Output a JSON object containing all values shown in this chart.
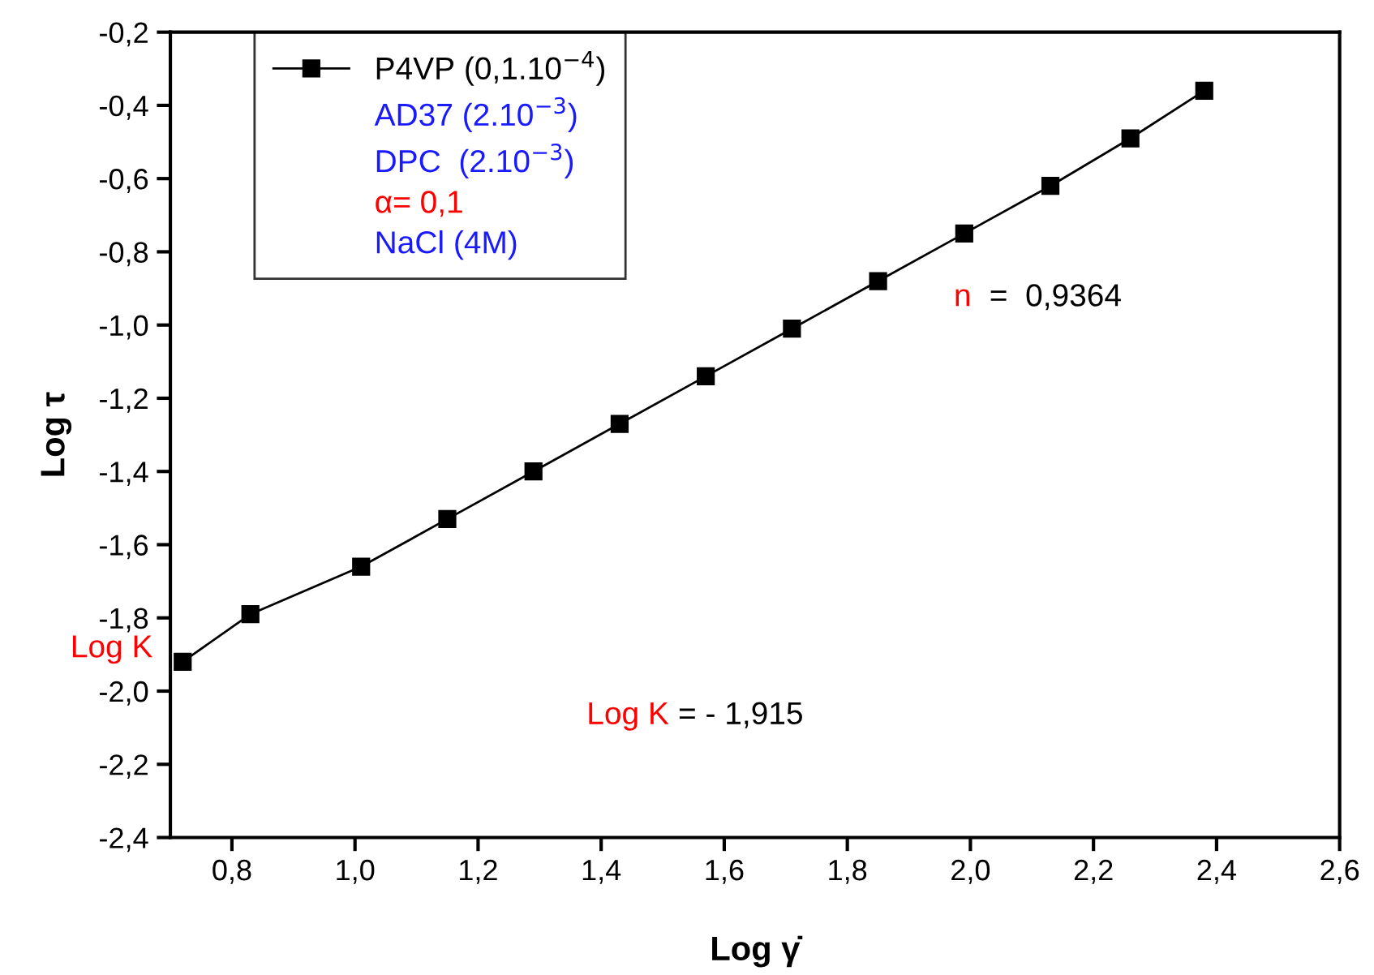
{
  "chart_data": {
    "type": "line",
    "xlabel": "Log γ̇",
    "ylabel": "Log τ",
    "x": [
      0.72,
      0.83,
      1.01,
      1.15,
      1.29,
      1.43,
      1.57,
      1.71,
      1.85,
      1.99,
      2.13,
      2.26,
      2.38
    ],
    "series": [
      {
        "name": "P4VP (0,1.10$^{−4}$)",
        "color": "#000000",
        "values": [
          -1.92,
          -1.79,
          -1.66,
          -1.53,
          -1.4,
          -1.27,
          -1.14,
          -1.01,
          -0.88,
          -0.75,
          -0.62,
          -0.49,
          -0.36
        ]
      }
    ],
    "xlim": [
      0.7,
      2.6
    ],
    "xticks": [
      {
        "value": 0.8,
        "label": "0,8"
      },
      {
        "value": 1.0,
        "label": "1,0"
      },
      {
        "value": 1.2,
        "label": "1,2"
      },
      {
        "value": 1.4,
        "label": "1,4"
      },
      {
        "value": 1.6,
        "label": "1,6"
      },
      {
        "value": 1.8,
        "label": "1,8"
      },
      {
        "value": 2.0,
        "label": "2,0"
      },
      {
        "value": 2.2,
        "label": "2,2"
      },
      {
        "value": 2.4,
        "label": "2,4"
      },
      {
        "value": 2.6,
        "label": "2,6"
      }
    ],
    "ylim": [
      -2.4,
      -0.2
    ],
    "yticks": [
      {
        "value": -2.4,
        "label": "-2,4"
      },
      {
        "value": -2.2,
        "label": "-2,2"
      },
      {
        "value": -2.0,
        "label": "-2,0"
      },
      {
        "value": -1.8,
        "label": "-1,8"
      },
      {
        "value": -1.6,
        "label": "-1,6"
      },
      {
        "value": -1.4,
        "label": "-1,4"
      },
      {
        "value": -1.2,
        "label": "-1,2"
      },
      {
        "value": -1.0,
        "label": "-1,0"
      },
      {
        "value": -0.8,
        "label": "-0,8"
      },
      {
        "value": -0.6,
        "label": "-0,6"
      },
      {
        "value": -0.4,
        "label": "-0,4"
      },
      {
        "value": -0.2,
        "label": "-0,2"
      }
    ],
    "annotations": [
      "AD37 (2.10$^{−3}$)",
      "DPC  (2.10$^{−3}$)",
      "α= 0,1",
      "NaCl (4M)",
      "n",
      "=  0,9364",
      "Log K",
      "= - 1,915",
      "Log K"
    ],
    "marker": "square",
    "line_style": "solid",
    "grid": false,
    "legend": "top left"
  }
}
